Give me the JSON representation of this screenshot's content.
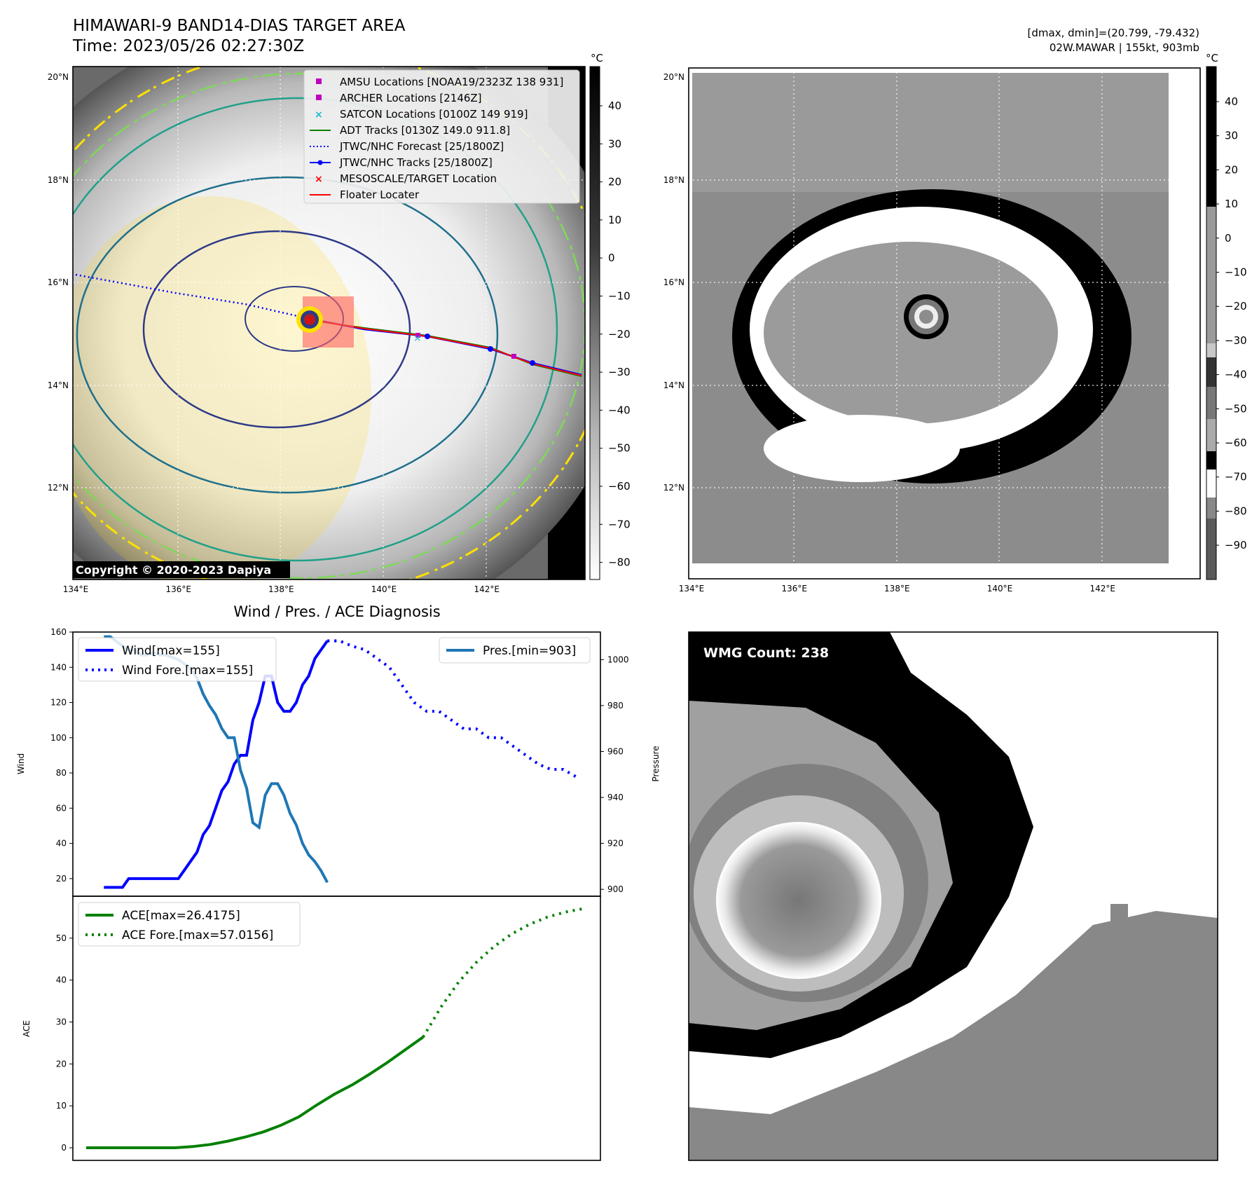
{
  "header": {
    "title": "HIMAWARI-9 BAND14-DIAS TARGET AREA",
    "time": "Time: 2023/05/26 02:27:30Z",
    "range": "[dmax, dmin]=(20.799, -79.432)",
    "storm": "02W.MAWAR | 155kt, 903mb",
    "copyright": "Copyright © 2020-2023 Dapiya"
  },
  "map": {
    "lon_ticks": [
      "134°E",
      "136°E",
      "138°E",
      "140°E",
      "142°E"
    ],
    "lat_ticks": [
      "20°N",
      "18°N",
      "16°N",
      "14°N",
      "12°N"
    ],
    "legend": [
      {
        "label": "AMSU Locations [NOAA19/2323Z 138 931]",
        "color": "#c000c0",
        "style": "square"
      },
      {
        "label": "ARCHER Locations [2146Z]",
        "color": "#c000c0",
        "style": "square"
      },
      {
        "label": "SATCON Locations [0100Z 149 919]",
        "color": "#17becf",
        "style": "x"
      },
      {
        "label": "ADT Tracks [0130Z 149.0 911.8]",
        "color": "#008000",
        "style": "line"
      },
      {
        "label": "JTWC/NHC Forecast [25/1800Z]",
        "color": "#0000ff",
        "style": "dotted"
      },
      {
        "label": "JTWC/NHC Tracks [25/1800Z]",
        "color": "#0000ff",
        "style": "line-dot"
      },
      {
        "label": "MESOSCALE/TARGET Location",
        "color": "#ff0000",
        "style": "x"
      },
      {
        "label": "Floater Locater",
        "color": "#ff0000",
        "style": "line"
      }
    ],
    "colorbar_unit": "°C",
    "colorbar_ticks": [
      "40",
      "30",
      "20",
      "10",
      "0",
      "−10",
      "−20",
      "−30",
      "−40",
      "−50",
      "−60",
      "−70",
      "−80"
    ],
    "colorbar2_ticks": [
      "40",
      "30",
      "20",
      "10",
      "0",
      "−10",
      "−20",
      "−30",
      "−40",
      "−50",
      "−60",
      "−70",
      "−80",
      "−90"
    ]
  },
  "chart_data": [
    {
      "type": "line",
      "title": "Wind / Pres. / ACE Diagnosis",
      "ylabel": "Wind",
      "y2label": "Pressure",
      "ylim": [
        10,
        160
      ],
      "y2lim": [
        897,
        1012
      ],
      "yticks": [
        20,
        40,
        60,
        80,
        100,
        120,
        140,
        160
      ],
      "y2ticks": [
        900,
        920,
        940,
        960,
        980,
        1000
      ],
      "series": [
        {
          "name": "Wind[max=155]",
          "axis": "left",
          "color": "#0000ff",
          "style": "solid",
          "x": [
            0,
            1,
            2,
            3,
            4,
            5,
            6,
            7,
            8,
            9,
            10,
            11,
            12,
            13,
            14,
            15,
            16,
            17,
            18,
            19,
            20,
            21,
            22,
            23,
            24,
            25,
            26,
            27,
            28,
            29,
            30,
            31,
            32,
            33,
            34,
            35,
            36,
            37,
            38,
            39,
            40,
            41,
            42,
            43,
            44
          ],
          "y": [
            15,
            15,
            15,
            15,
            20,
            20,
            20,
            20,
            20,
            20,
            20,
            20,
            20,
            25,
            30,
            35,
            45,
            50,
            60,
            70,
            75,
            85,
            90,
            90,
            110,
            120,
            135,
            135,
            120,
            115,
            115,
            120,
            130,
            135,
            145,
            150,
            155,
            null,
            null,
            null,
            null,
            null,
            null,
            null,
            null
          ]
        },
        {
          "name": "Wind Fore.[max=155]",
          "axis": "left",
          "color": "#0000ff",
          "style": "dotted",
          "x": [
            36,
            37,
            38,
            39,
            40,
            41,
            42,
            43,
            44,
            45,
            46,
            47,
            48,
            49,
            50,
            51,
            52,
            53,
            54,
            55,
            56,
            57,
            58,
            59,
            60,
            61,
            62,
            63,
            64,
            65,
            66,
            67,
            68,
            69,
            70,
            71,
            72,
            73,
            74,
            75
          ],
          "y": [
            155,
            155,
            155,
            null,
            null,
            null,
            null,
            null,
            null,
            null,
            null,
            null,
            null,
            null,
            null,
            null,
            null,
            null,
            null,
            null,
            null,
            null,
            null,
            null,
            null,
            null,
            null,
            null,
            null,
            null,
            null,
            null,
            null,
            null,
            null,
            null,
            null,
            null,
            null,
            null
          ]
        },
        {
          "name": "Pres.[min=903]",
          "axis": "right",
          "color": "#1f77b4",
          "style": "solid",
          "x": [
            0,
            1,
            2,
            3,
            4,
            5,
            6,
            7,
            8,
            9,
            10,
            11,
            12,
            13,
            14,
            15,
            16,
            17,
            18,
            19,
            20,
            21,
            22,
            23,
            24,
            25,
            26,
            27,
            28,
            29,
            30,
            31,
            32,
            33,
            34,
            35,
            36
          ],
          "y": [
            1010,
            1010,
            1008,
            1006,
            1004,
            1004,
            1002,
            1002,
            1003,
            1002,
            1002,
            1001,
            1000,
            998,
            996,
            992,
            985,
            980,
            976,
            970,
            966,
            966,
            952,
            944,
            929,
            927,
            941,
            946,
            946,
            941,
            933,
            928,
            920,
            915,
            912,
            908,
            903
          ]
        }
      ]
    },
    {
      "type": "line",
      "ylabel": "ACE",
      "ylim": [
        -3,
        60
      ],
      "yticks": [
        0,
        10,
        20,
        30,
        40,
        50
      ],
      "series": [
        {
          "name": "ACE[max=26.4175]",
          "color": "#008000",
          "style": "solid",
          "x": [
            0,
            2,
            4,
            6,
            8,
            10,
            12,
            14,
            16,
            18,
            20,
            22,
            24,
            26,
            28,
            30,
            32,
            34,
            36,
            38,
            40,
            42,
            44,
            46,
            48,
            50,
            52,
            54
          ],
          "y": [
            0,
            0,
            0,
            0,
            0,
            0,
            0,
            0,
            0,
            0,
            0.1,
            0.3,
            0.6,
            1.0,
            1.5,
            2.1,
            2.9,
            3.7,
            4.6,
            5.8,
            7.2,
            8.9,
            10.8,
            12.6,
            14.2,
            15.8,
            17.4,
            26.4175
          ]
        }
      ]
    }
  ],
  "wmg": {
    "label": "WMG Count: 238"
  }
}
